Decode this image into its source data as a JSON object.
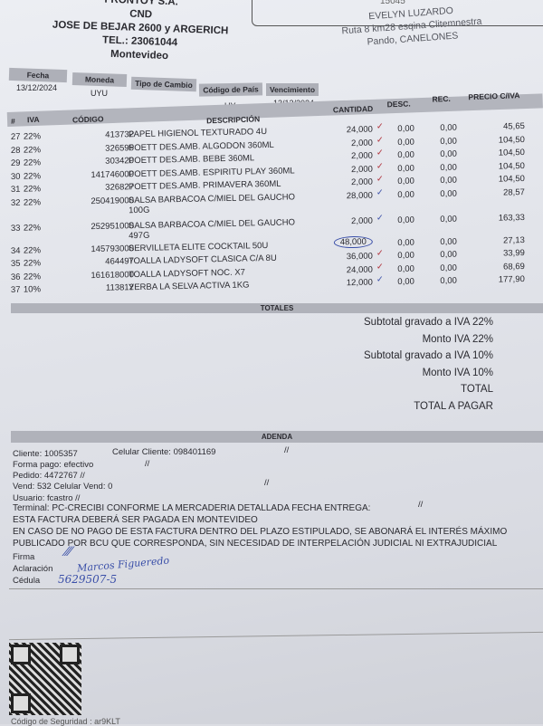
{
  "issuer": {
    "name": "FRONTOY S.A.",
    "line2": "CND",
    "address": "JOSE DE BEJAR 2600 y ARGERICH",
    "tel": "TEL.: 23061044",
    "city": "Montevideo"
  },
  "receiver": {
    "doc_partial": "15045",
    "name": "EVELYN LUZARDO",
    "address": "Ruta 8 km28 esqina Clitemnestra",
    "city": "Pando, CANELONES"
  },
  "meta": {
    "labels": {
      "fecha": "Fecha",
      "moneda": "Moneda",
      "tipo_cambio": "Tipo de Cambio",
      "codigo_pais": "Código de País",
      "vencimiento": "Vencimiento"
    },
    "fecha": "13/12/2024",
    "moneda": "UYU",
    "codigo_pais": "UY",
    "vencimiento": "13/12/2024"
  },
  "table": {
    "headers": {
      "num": "#",
      "iva": "IVA",
      "codigo": "CÓDIGO",
      "descripcion": "DESCRIPCIÓN",
      "cantidad": "CANTIDAD",
      "desc": "DESC.",
      "rec": "REC.",
      "precio": "PRECIO C/IVA"
    },
    "rows": [
      {
        "num": "27",
        "iva": "22%",
        "codigo": "413732",
        "descripcion": "PAPEL HIGIENOL TEXTURADO 4U",
        "cantidad": "24,000",
        "desc": "0,00",
        "rec": "0,00",
        "precio": "45,65"
      },
      {
        "num": "28",
        "iva": "22%",
        "codigo": "326595",
        "descripcion": "POETT DES.AMB. ALGODON 360ML",
        "cantidad": "2,000",
        "desc": "0,00",
        "rec": "0,00",
        "precio": "104,50"
      },
      {
        "num": "29",
        "iva": "22%",
        "codigo": "303420",
        "descripcion": "POETT DES.AMB. BEBE 360ML",
        "cantidad": "2,000",
        "desc": "0,00",
        "rec": "0,00",
        "precio": "104,50"
      },
      {
        "num": "30",
        "iva": "22%",
        "codigo": "141746000",
        "descripcion": "POETT DES.AMB. ESPIRITU PLAY 360ML",
        "cantidad": "2,000",
        "desc": "0,00",
        "rec": "0,00",
        "precio": "104,50"
      },
      {
        "num": "31",
        "iva": "22%",
        "codigo": "326827",
        "descripcion": "POETT DES.AMB. PRIMAVERA 360ML",
        "cantidad": "2,000",
        "desc": "0,00",
        "rec": "0,00",
        "precio": "104,50"
      },
      {
        "num": "32",
        "iva": "22%",
        "codigo": "250419000",
        "descripcion": "SALSA BARBACOA C/MIEL DEL GAUCHO 100G",
        "cantidad": "28,000",
        "desc": "0,00",
        "rec": "0,00",
        "precio": "28,57"
      },
      {
        "num": "33",
        "iva": "22%",
        "codigo": "252951000",
        "descripcion": "SALSA BARBACOA C/MIEL DEL GAUCHO 497G",
        "cantidad": "2,000",
        "desc": "0,00",
        "rec": "0,00",
        "precio": "163,33"
      },
      {
        "num": "34",
        "iva": "22%",
        "codigo": "145793000",
        "descripcion": "SERVILLETA ELITE COCKTAIL 50U",
        "cantidad": "48,000",
        "desc": "0,00",
        "rec": "0,00",
        "precio": "27,13"
      },
      {
        "num": "35",
        "iva": "22%",
        "codigo": "464497",
        "descripcion": "TOALLA LADYSOFT CLASICA C/A 8U",
        "cantidad": "36,000",
        "desc": "0,00",
        "rec": "0,00",
        "precio": "33,99"
      },
      {
        "num": "36",
        "iva": "22%",
        "codigo": "161618000",
        "descripcion": "TOALLA LADYSOFT NOC. X7",
        "cantidad": "24,000",
        "desc": "0,00",
        "rec": "0,00",
        "precio": "68,69"
      },
      {
        "num": "37",
        "iva": "10%",
        "codigo": "113812",
        "descripcion": "YERBA LA SELVA ACTIVA 1KG",
        "cantidad": "12,000",
        "desc": "0,00",
        "rec": "0,00",
        "precio": "177,90"
      }
    ]
  },
  "totales": {
    "title": "TOTALES",
    "lines": [
      "Subtotal gravado a IVA 22%",
      "Monto IVA 22%",
      "Subtotal gravado a IVA 10%",
      "Monto IVA 10%",
      "TOTAL",
      "TOTAL A PAGAR"
    ]
  },
  "adenda": {
    "title": "ADENDA",
    "cliente": "Cliente: 1005357",
    "celular_cliente": "Celular Cliente: 098401169",
    "forma_pago": "Forma pago: efectivo",
    "pedido": "Pedido:  4472767  //",
    "vend": "Vend: 532  Celular Vend: 0",
    "usuario": "Usuario: fcastro   //",
    "terminal": "Terminal: PC-CRECIBI CONFORME LA MERCADERIA DETALLADA FECHA ENTREGA:",
    "sep": "//",
    "legal1": "ESTA FACTURA DEBERÁ SER PAGADA EN MONTEVIDEO",
    "legal2": "EN CASO DE NO PAGO DE ESTA FACTURA DENTRO DEL PLAZO ESTIPULADO, SE ABONARÁ EL INTERÉS MÁXIMO",
    "legal3": "PUBLICADO POR BCU QUE CORRESPONDA, SIN NECESIDAD DE INTERPELACIÓN JUDICIAL NI EXTRAJUDICIAL",
    "firma_label": "Firma",
    "aclaracion_label": "Aclaración",
    "cedula_label": "Cédula",
    "aclaracion_value": "Marcos Figueredo",
    "cedula_value": "5629507-5"
  },
  "security": "Código de Seguridad : ar9KLT",
  "colors": {
    "header_fill": "#b0b2ba",
    "ink": "#2a2a30",
    "pen_blue": "#3a4fa8",
    "pen_red": "#b0303a"
  }
}
